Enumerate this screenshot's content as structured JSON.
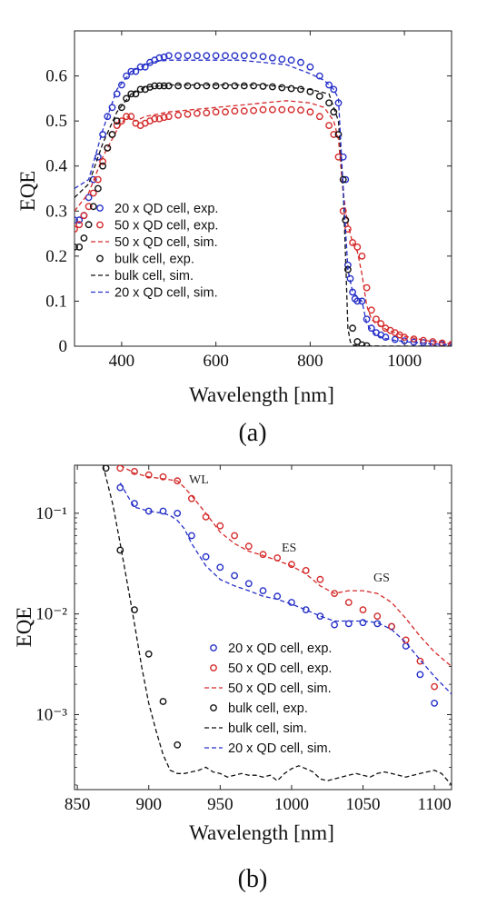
{
  "colors": {
    "blue": "#2630c8",
    "red": "#d42a2a",
    "black": "#111111"
  },
  "chart_data": [
    {
      "type": "line",
      "panel_label": "(a)",
      "xlabel": "Wavelength [nm]",
      "ylabel": "EQE",
      "xlim": [
        300,
        1100
      ],
      "ylim": [
        0,
        0.7
      ],
      "x_ticks": [
        "400",
        "600",
        "800",
        "1000"
      ],
      "y_ticks": [
        "0",
        "0.1",
        "0.2",
        "0.3",
        "0.4",
        "0.5",
        "0.6"
      ],
      "legend_position": "lower-left",
      "series": [
        {
          "name": "20 x QD cell, exp.",
          "style": "circles",
          "color": "blue",
          "x": [
            300,
            310,
            320,
            330,
            340,
            350,
            360,
            370,
            380,
            390,
            400,
            410,
            420,
            430,
            440,
            450,
            460,
            470,
            480,
            490,
            500,
            520,
            540,
            560,
            580,
            600,
            620,
            640,
            660,
            680,
            700,
            720,
            740,
            760,
            780,
            800,
            820,
            840,
            850,
            860,
            870,
            875,
            880,
            885,
            890,
            895,
            900,
            910,
            920,
            930,
            940,
            950,
            960,
            980,
            1000,
            1020,
            1040,
            1060,
            1080,
            1100
          ],
          "y": [
            0.28,
            0.28,
            0.29,
            0.33,
            0.37,
            0.42,
            0.47,
            0.51,
            0.53,
            0.56,
            0.58,
            0.6,
            0.61,
            0.61,
            0.62,
            0.62,
            0.63,
            0.635,
            0.64,
            0.642,
            0.645,
            0.645,
            0.645,
            0.645,
            0.645,
            0.645,
            0.645,
            0.645,
            0.645,
            0.645,
            0.643,
            0.64,
            0.637,
            0.635,
            0.63,
            0.62,
            0.6,
            0.58,
            0.57,
            0.54,
            0.42,
            0.37,
            0.18,
            0.15,
            0.12,
            0.105,
            0.1,
            0.1,
            0.06,
            0.04,
            0.03,
            0.025,
            0.02,
            0.015,
            0.012,
            0.009,
            0.008,
            0.006,
            0.004,
            0.002
          ]
        },
        {
          "name": "50 x QD cell, exp.",
          "style": "circles",
          "color": "red",
          "x": [
            300,
            310,
            320,
            330,
            340,
            350,
            360,
            370,
            380,
            390,
            400,
            410,
            420,
            430,
            440,
            450,
            460,
            470,
            480,
            490,
            500,
            520,
            540,
            560,
            580,
            600,
            620,
            640,
            660,
            680,
            700,
            720,
            740,
            760,
            780,
            800,
            820,
            840,
            850,
            860,
            870,
            875,
            880,
            890,
            900,
            910,
            920,
            930,
            940,
            950,
            960,
            970,
            980,
            990,
            1000,
            1020,
            1040,
            1060,
            1080,
            1100
          ],
          "y": [
            0.26,
            0.27,
            0.29,
            0.31,
            0.34,
            0.37,
            0.41,
            0.44,
            0.47,
            0.49,
            0.5,
            0.51,
            0.51,
            0.495,
            0.49,
            0.495,
            0.5,
            0.505,
            0.505,
            0.508,
            0.51,
            0.513,
            0.515,
            0.517,
            0.518,
            0.52,
            0.52,
            0.522,
            0.522,
            0.523,
            0.525,
            0.525,
            0.525,
            0.525,
            0.524,
            0.52,
            0.51,
            0.49,
            0.47,
            0.42,
            0.3,
            0.28,
            0.26,
            0.23,
            0.22,
            0.2,
            0.13,
            0.08,
            0.06,
            0.05,
            0.04,
            0.035,
            0.03,
            0.025,
            0.02,
            0.016,
            0.013,
            0.01,
            0.007,
            0.004
          ]
        },
        {
          "name": "50 x QD cell, sim.",
          "style": "dashed",
          "color": "red",
          "x": [
            300,
            330,
            360,
            390,
            410,
            430,
            450,
            500,
            550,
            600,
            650,
            700,
            750,
            800,
            830,
            850,
            860,
            870,
            880,
            890,
            900,
            910,
            920,
            930,
            940,
            960,
            980,
            1000,
            1050,
            1100
          ],
          "y": [
            0.3,
            0.34,
            0.42,
            0.48,
            0.51,
            0.5,
            0.51,
            0.52,
            0.525,
            0.53,
            0.535,
            0.54,
            0.545,
            0.54,
            0.53,
            0.5,
            0.46,
            0.34,
            0.27,
            0.23,
            0.21,
            0.16,
            0.09,
            0.06,
            0.05,
            0.038,
            0.03,
            0.022,
            0.012,
            0.005
          ]
        },
        {
          "name": "bulk cell, exp.",
          "style": "circles",
          "color": "black",
          "x": [
            300,
            310,
            320,
            330,
            340,
            350,
            360,
            370,
            380,
            390,
            400,
            410,
            420,
            430,
            440,
            450,
            460,
            470,
            480,
            490,
            500,
            520,
            540,
            560,
            580,
            600,
            620,
            640,
            660,
            680,
            700,
            720,
            740,
            760,
            780,
            800,
            820,
            840,
            850,
            860,
            870,
            875,
            880,
            890,
            900,
            910,
            920
          ],
          "y": [
            0.22,
            0.22,
            0.24,
            0.27,
            0.31,
            0.35,
            0.4,
            0.44,
            0.47,
            0.5,
            0.53,
            0.55,
            0.56,
            0.56,
            0.57,
            0.57,
            0.575,
            0.578,
            0.578,
            0.578,
            0.578,
            0.578,
            0.578,
            0.578,
            0.578,
            0.578,
            0.578,
            0.578,
            0.578,
            0.578,
            0.577,
            0.576,
            0.574,
            0.572,
            0.57,
            0.565,
            0.555,
            0.54,
            0.52,
            0.47,
            0.37,
            0.28,
            0.17,
            0.04,
            0.01,
            0.003,
            0.001
          ]
        },
        {
          "name": "bulk cell, sim.",
          "style": "dashed",
          "color": "black",
          "x": [
            300,
            330,
            360,
            390,
            420,
            450,
            500,
            600,
            700,
            800,
            840,
            860,
            870,
            875,
            880,
            885,
            890,
            900,
            920,
            1000,
            1100
          ],
          "y": [
            0.33,
            0.36,
            0.45,
            0.52,
            0.56,
            0.575,
            0.58,
            0.58,
            0.58,
            0.57,
            0.56,
            0.5,
            0.35,
            0.2,
            0.04,
            0.01,
            0.003,
            0.001,
            0.0005,
            0.0003,
            0.0002
          ]
        },
        {
          "name": "20 x QD cell, sim.",
          "style": "dashed",
          "color": "blue",
          "x": [
            300,
            330,
            360,
            390,
            420,
            450,
            470,
            500,
            550,
            600,
            650,
            700,
            750,
            800,
            830,
            850,
            860,
            870,
            880,
            890,
            900,
            910,
            920,
            930,
            940,
            960,
            980,
            1000,
            1050,
            1100
          ],
          "y": [
            0.35,
            0.37,
            0.48,
            0.57,
            0.61,
            0.625,
            0.632,
            0.635,
            0.635,
            0.635,
            0.635,
            0.63,
            0.625,
            0.605,
            0.59,
            0.57,
            0.55,
            0.35,
            0.17,
            0.12,
            0.11,
            0.1,
            0.05,
            0.035,
            0.025,
            0.017,
            0.013,
            0.01,
            0.006,
            0.003
          ]
        }
      ]
    },
    {
      "type": "line",
      "panel_label": "(b)",
      "xlabel": "Wavelength [nm]",
      "ylabel": "EQE",
      "y_scale": "log",
      "xlim": [
        848,
        1112
      ],
      "ylim": [
        0.00018,
        0.3
      ],
      "x_ticks": [
        "850",
        "900",
        "950",
        "1000",
        "1050",
        "1100"
      ],
      "y_ticks": [
        "10⁻³",
        "10⁻²",
        "10⁻¹"
      ],
      "annotations": [
        "WL",
        "ES",
        "GS"
      ],
      "legend_position": "lower-right",
      "series": [
        {
          "name": "20 x QD cell, exp.",
          "style": "circles",
          "color": "blue",
          "x": [
            880,
            890,
            900,
            910,
            920,
            930,
            940,
            950,
            960,
            970,
            980,
            990,
            1000,
            1010,
            1020,
            1030,
            1040,
            1050,
            1060,
            1070,
            1080,
            1090,
            1100
          ],
          "y": [
            0.18,
            0.125,
            0.105,
            0.105,
            0.1,
            0.06,
            0.037,
            0.029,
            0.024,
            0.02,
            0.017,
            0.015,
            0.013,
            0.011,
            0.0095,
            0.0078,
            0.008,
            0.0082,
            0.008,
            0.0075,
            0.0048,
            0.0025,
            0.0013
          ]
        },
        {
          "name": "50 x QD cell, exp.",
          "style": "circles",
          "color": "red",
          "x": [
            880,
            890,
            900,
            910,
            920,
            930,
            940,
            950,
            960,
            970,
            980,
            990,
            1000,
            1010,
            1020,
            1030,
            1040,
            1050,
            1060,
            1070,
            1080,
            1090,
            1100
          ],
          "y": [
            0.28,
            0.26,
            0.24,
            0.23,
            0.21,
            0.14,
            0.092,
            0.075,
            0.06,
            0.047,
            0.039,
            0.036,
            0.031,
            0.027,
            0.022,
            0.016,
            0.013,
            0.011,
            0.0095,
            0.0075,
            0.0055,
            0.0034,
            0.0019
          ]
        },
        {
          "name": "50 x QD cell, sim.",
          "style": "dashed",
          "color": "red",
          "x": [
            880,
            890,
            900,
            910,
            920,
            925,
            930,
            940,
            950,
            960,
            970,
            980,
            990,
            1000,
            1010,
            1020,
            1030,
            1040,
            1050,
            1060,
            1070,
            1080,
            1090,
            1100,
            1112
          ],
          "y": [
            0.3,
            0.25,
            0.23,
            0.22,
            0.21,
            0.18,
            0.15,
            0.1,
            0.065,
            0.05,
            0.042,
            0.038,
            0.034,
            0.03,
            0.025,
            0.019,
            0.016,
            0.017,
            0.017,
            0.016,
            0.013,
            0.009,
            0.006,
            0.0042,
            0.003
          ]
        },
        {
          "name": "bulk cell, exp.",
          "style": "circles",
          "color": "black",
          "x": [
            870,
            880,
            890,
            900,
            910,
            920
          ],
          "y": [
            0.28,
            0.043,
            0.011,
            0.004,
            0.00135,
            0.0005
          ]
        },
        {
          "name": "bulk cell, sim.",
          "style": "dashed",
          "color": "black",
          "x": [
            868,
            875,
            880,
            885,
            890,
            895,
            900,
            905,
            910,
            915,
            920,
            925,
            930,
            935,
            940,
            945,
            950,
            955,
            960,
            965,
            970,
            975,
            980,
            985,
            990,
            995,
            1000,
            1005,
            1010,
            1015,
            1020,
            1025,
            1030,
            1035,
            1040,
            1045,
            1050,
            1055,
            1060,
            1065,
            1070,
            1075,
            1080,
            1085,
            1090,
            1095,
            1100,
            1105,
            1112
          ],
          "y": [
            0.3,
            0.12,
            0.05,
            0.02,
            0.008,
            0.003,
            0.0013,
            0.0007,
            0.0004,
            0.00028,
            0.00026,
            0.00026,
            0.00027,
            0.00028,
            0.0003,
            0.00027,
            0.00026,
            0.00024,
            0.00025,
            0.00026,
            0.00025,
            0.00025,
            0.00024,
            0.00025,
            0.00022,
            0.00026,
            0.00029,
            0.00031,
            0.00029,
            0.00027,
            0.00023,
            0.00022,
            0.00023,
            0.00024,
            0.00025,
            0.00026,
            0.00025,
            0.00024,
            0.00026,
            0.00027,
            0.00026,
            0.00025,
            0.00024,
            0.00025,
            0.00026,
            0.00027,
            0.00028,
            0.00026,
            0.0002
          ]
        },
        {
          "name": "20 x QD cell, sim.",
          "style": "dashed",
          "color": "blue",
          "x": [
            880,
            885,
            890,
            900,
            910,
            915,
            920,
            925,
            930,
            940,
            950,
            960,
            970,
            980,
            990,
            1000,
            1010,
            1020,
            1030,
            1040,
            1050,
            1060,
            1070,
            1080,
            1090,
            1100,
            1112
          ],
          "y": [
            0.2,
            0.15,
            0.115,
            0.105,
            0.1,
            0.095,
            0.085,
            0.07,
            0.05,
            0.03,
            0.022,
            0.019,
            0.017,
            0.015,
            0.014,
            0.0125,
            0.011,
            0.0095,
            0.0085,
            0.0085,
            0.0085,
            0.0082,
            0.007,
            0.0052,
            0.0035,
            0.0024,
            0.0016
          ]
        }
      ]
    }
  ]
}
